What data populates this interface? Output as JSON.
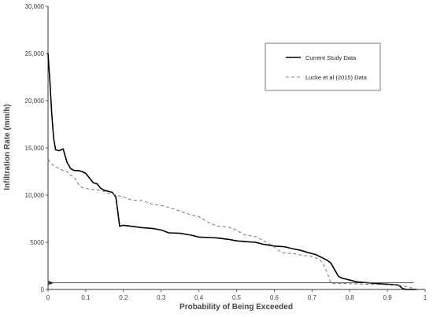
{
  "chart_data": {
    "type": "line",
    "title": "",
    "xlabel": "Probability of Being Exceeded",
    "ylabel": "Infiltration Rate (mm/h)",
    "xlim": [
      0,
      1
    ],
    "ylim": [
      0,
      30000
    ],
    "x_ticks": [
      0,
      0.1,
      0.2,
      0.3,
      0.4,
      0.5,
      0.6,
      0.7,
      0.8,
      0.9,
      1
    ],
    "x_tick_labels": [
      "0",
      "0.1",
      "0.2",
      "0.3",
      "0.4",
      "0.5",
      "0.6",
      "0.7",
      "0.8",
      "0.9",
      "1"
    ],
    "y_ticks": [
      0,
      5000,
      10000,
      15000,
      20000,
      25000,
      30000
    ],
    "y_tick_labels": [
      "0",
      "5000",
      "10,000",
      "15,000",
      "20,000",
      "25,000",
      "30,000"
    ],
    "grid": false,
    "legend_position": "top-right",
    "series": [
      {
        "name": "Current Study Data",
        "style": "solid",
        "color": "#000000",
        "x": [
          0,
          0.005,
          0.01,
          0.015,
          0.02,
          0.03,
          0.04,
          0.05,
          0.06,
          0.07,
          0.08,
          0.09,
          0.1,
          0.11,
          0.12,
          0.13,
          0.14,
          0.15,
          0.16,
          0.17,
          0.18,
          0.19,
          0.2,
          0.22,
          0.25,
          0.28,
          0.3,
          0.32,
          0.35,
          0.38,
          0.4,
          0.43,
          0.45,
          0.48,
          0.5,
          0.53,
          0.55,
          0.57,
          0.6,
          0.62,
          0.63,
          0.65,
          0.67,
          0.69,
          0.7,
          0.71,
          0.72,
          0.73,
          0.74,
          0.75,
          0.76,
          0.77,
          0.78,
          0.79,
          0.8,
          0.82,
          0.85,
          0.88,
          0.9,
          0.92,
          0.93,
          0.94,
          0.95,
          0.96,
          0.97,
          0.98
        ],
        "y": [
          25000,
          22000,
          18500,
          16000,
          14800,
          14700,
          14900,
          13500,
          12800,
          12600,
          12600,
          12500,
          12300,
          11800,
          11300,
          11200,
          10700,
          10500,
          10400,
          10300,
          9800,
          6700,
          6800,
          6700,
          6550,
          6450,
          6300,
          6000,
          5950,
          5750,
          5550,
          5500,
          5450,
          5300,
          5150,
          5050,
          5000,
          4800,
          4600,
          4550,
          4500,
          4300,
          4150,
          3900,
          3800,
          3700,
          3500,
          3300,
          3100,
          2800,
          2100,
          1400,
          1200,
          1100,
          1000,
          800,
          700,
          600,
          550,
          500,
          450,
          100,
          0,
          0,
          0,
          0
        ]
      },
      {
        "name": "Lucke et al (2015) Data",
        "style": "dashed",
        "color": "#808080",
        "x": [
          0,
          0.01,
          0.02,
          0.03,
          0.04,
          0.05,
          0.06,
          0.07,
          0.08,
          0.09,
          0.1,
          0.12,
          0.14,
          0.16,
          0.18,
          0.2,
          0.22,
          0.25,
          0.28,
          0.3,
          0.32,
          0.35,
          0.38,
          0.4,
          0.43,
          0.45,
          0.48,
          0.5,
          0.52,
          0.55,
          0.58,
          0.6,
          0.62,
          0.65,
          0.68,
          0.7,
          0.72,
          0.73,
          0.74,
          0.75,
          0.76,
          0.78,
          0.8,
          0.85,
          0.9,
          0.93,
          0.95,
          0.97,
          0.98
        ],
        "y": [
          13800,
          13300,
          13000,
          12800,
          12600,
          12500,
          12100,
          11900,
          11200,
          10800,
          10700,
          10600,
          10500,
          10200,
          10000,
          9800,
          9500,
          9400,
          9000,
          8900,
          8700,
          8300,
          7900,
          7700,
          7000,
          6700,
          6600,
          6300,
          5800,
          5600,
          5000,
          4500,
          3900,
          3800,
          3600,
          3500,
          3200,
          2700,
          1800,
          700,
          600,
          650,
          600,
          550,
          500,
          450,
          300,
          100,
          0
        ]
      }
    ],
    "annotations": [
      {
        "type": "arrow",
        "direction": "left",
        "y": 700,
        "x_from": 0.97,
        "x_to": 0.0
      }
    ]
  }
}
